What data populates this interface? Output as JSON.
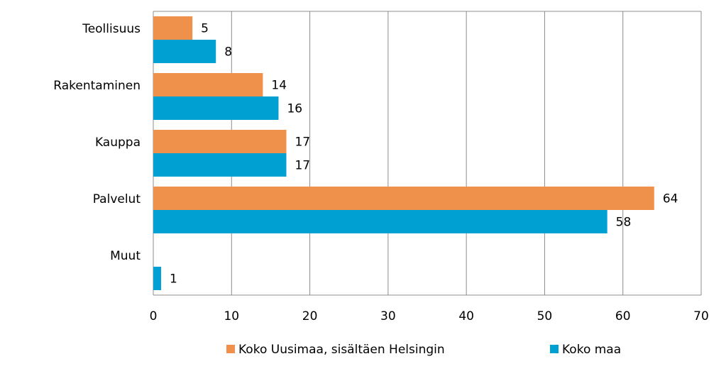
{
  "chart_data": {
    "type": "bar",
    "orientation": "horizontal",
    "categories": [
      "Teollisuus",
      "Rakentaminen",
      "Kauppa",
      "Palvelut",
      "Muut"
    ],
    "series": [
      {
        "name": "Koko Uusimaa, sisältäen Helsingin",
        "color": "#F0914B",
        "values": [
          5,
          14,
          17,
          64,
          null
        ]
      },
      {
        "name": "Koko maa",
        "color": "#00A0D2",
        "values": [
          8,
          16,
          17,
          58,
          1
        ]
      }
    ],
    "xlim": [
      0,
      70
    ],
    "xticks": [
      0,
      10,
      20,
      30,
      40,
      50,
      60,
      70
    ],
    "grid": true,
    "legend_position": "bottom"
  }
}
